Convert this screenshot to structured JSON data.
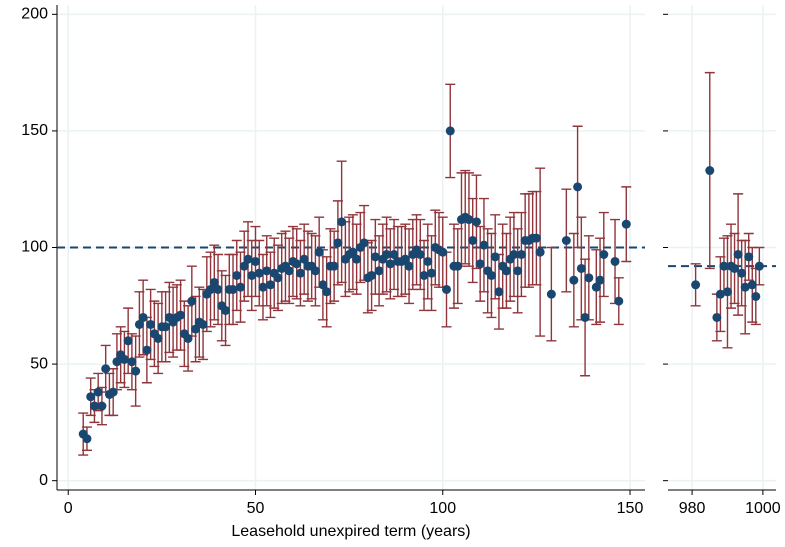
{
  "chart_data": [
    {
      "type": "scatter",
      "xlabel": "Leasehold unexpired term (years)",
      "x": [
        4,
        5,
        6,
        7,
        8,
        9,
        10,
        11,
        12,
        13,
        14,
        15,
        16,
        17,
        18,
        19,
        20,
        21,
        22,
        23,
        24,
        25,
        26,
        27,
        28,
        29,
        30,
        31,
        32,
        33,
        34,
        35,
        36,
        37,
        38,
        39,
        40,
        41,
        42,
        43,
        44,
        45,
        46,
        47,
        48,
        49,
        50,
        51,
        52,
        53,
        54,
        55,
        56,
        57,
        58,
        59,
        60,
        61,
        62,
        63,
        64,
        65,
        66,
        67,
        68,
        69,
        70,
        71,
        72,
        73,
        74,
        75,
        76,
        77,
        78,
        79,
        80,
        81,
        82,
        83,
        84,
        85,
        86,
        87,
        88,
        89,
        90,
        91,
        92,
        93,
        94,
        95,
        96,
        97,
        98,
        99,
        100,
        101,
        102,
        103,
        104,
        105,
        106,
        107,
        108,
        109,
        110,
        111,
        112,
        113,
        114,
        115,
        116,
        117,
        118,
        119,
        120,
        121,
        122,
        123,
        124,
        125,
        126,
        129,
        133,
        135,
        136,
        137,
        138,
        139,
        141,
        142,
        143,
        146,
        147,
        149
      ],
      "values": [
        20,
        18,
        36,
        32,
        38,
        32,
        48,
        37,
        38,
        51,
        54,
        52,
        60,
        51,
        47,
        67,
        70,
        56,
        67,
        63,
        61,
        66,
        66,
        70,
        68,
        70,
        71,
        63,
        61,
        77,
        65,
        68,
        67,
        80,
        82,
        85,
        82,
        75,
        73,
        82,
        82,
        88,
        83,
        92,
        95,
        88,
        94,
        89,
        83,
        90,
        84,
        89,
        87,
        91,
        92,
        90,
        94,
        93,
        89,
        95,
        92,
        92,
        90,
        98,
        84,
        81,
        92,
        92,
        102,
        111,
        95,
        97,
        98,
        95,
        100,
        102,
        87,
        88,
        96,
        90,
        95,
        97,
        93,
        97,
        94,
        94,
        95,
        92,
        97,
        99,
        97,
        88,
        94,
        89,
        100,
        99,
        98,
        82,
        150,
        92,
        92,
        112,
        113,
        112,
        103,
        111,
        93,
        101,
        90,
        88,
        96,
        81,
        92,
        90,
        95,
        97,
        90,
        97,
        103,
        103,
        104,
        104,
        98,
        80,
        103,
        86,
        126,
        91,
        70,
        87,
        83,
        86,
        97,
        94,
        77,
        110
      ],
      "errors": [
        9,
        5,
        8,
        7,
        8,
        8,
        10,
        9,
        10,
        12,
        12,
        12,
        14,
        12,
        15,
        14,
        16,
        14,
        15,
        14,
        15,
        15,
        15,
        15,
        15,
        14,
        15,
        14,
        14,
        15,
        14,
        15,
        15,
        16,
        16,
        16,
        15,
        15,
        15,
        15,
        15,
        15,
        15,
        15,
        16,
        15,
        15,
        14,
        14,
        15,
        14,
        15,
        14,
        15,
        15,
        14,
        15,
        15,
        14,
        15,
        15,
        14,
        15,
        15,
        15,
        15,
        16,
        15,
        18,
        26,
        16,
        16,
        16,
        15,
        15,
        16,
        15,
        15,
        16,
        15,
        15,
        16,
        15,
        15,
        15,
        15,
        15,
        16,
        15,
        15,
        15,
        15,
        16,
        16,
        16,
        16,
        15,
        16,
        20,
        18,
        16,
        20,
        20,
        20,
        18,
        20,
        16,
        20,
        18,
        18,
        18,
        16,
        18,
        16,
        18,
        18,
        18,
        18,
        20,
        20,
        20,
        20,
        36,
        20,
        22,
        20,
        26,
        22,
        25,
        18,
        16,
        18,
        18,
        18,
        10,
        16
      ],
      "ref_line": 100,
      "point_color": "#1a476f",
      "error_color": "#90353b",
      "line_color": "#1a476f",
      "xlim": [
        -3,
        154
      ],
      "ylim": [
        -4,
        204
      ],
      "xticks": [
        0,
        50,
        100,
        150
      ],
      "yticks": [
        0,
        50,
        100,
        150,
        200
      ],
      "grid": true
    },
    {
      "type": "scatter",
      "x": [
        981,
        985,
        987,
        988,
        989,
        990,
        991,
        992,
        993,
        994,
        995,
        996,
        997,
        998,
        999
      ],
      "values": [
        84,
        133,
        70,
        80,
        92,
        81,
        92,
        91,
        97,
        89,
        83,
        96,
        84,
        79,
        92
      ],
      "errors": [
        9,
        42,
        10,
        16,
        12,
        24,
        18,
        15,
        26,
        14,
        20,
        10,
        16,
        12,
        8
      ],
      "ref_line": 92,
      "point_color": "#1a476f",
      "error_color": "#90353b",
      "line_color": "#1a476f",
      "xlim": [
        973.2,
        1003.7
      ],
      "ylim": [
        -4,
        204
      ],
      "xticks": [
        980,
        1000
      ],
      "yticks": [
        0,
        50,
        100,
        150,
        200
      ],
      "grid": true
    }
  ]
}
